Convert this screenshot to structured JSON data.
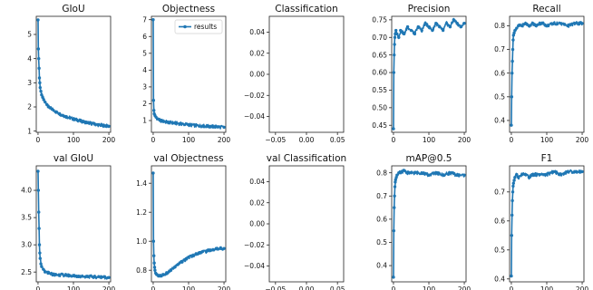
{
  "accent_color": "#1f77b4",
  "legend": {
    "label": "results",
    "panel": "objectness"
  },
  "chart_data": [
    {
      "id": "giou",
      "title": "GIoU",
      "type": "line",
      "empty": false,
      "xlim": [
        -5,
        205
      ],
      "ylim": [
        0.95,
        5.75
      ],
      "xticks": [
        0,
        100,
        200
      ],
      "yticks": [
        1,
        2,
        3,
        4,
        5
      ],
      "x": [
        0,
        1,
        2,
        3,
        4,
        5,
        6,
        8,
        10,
        13,
        16,
        20,
        25,
        30,
        40,
        50,
        60,
        70,
        80,
        90,
        100,
        110,
        120,
        130,
        140,
        150,
        160,
        170,
        180,
        190,
        200
      ],
      "values": [
        5.6,
        4.4,
        4.0,
        3.6,
        3.2,
        3.0,
        2.8,
        2.65,
        2.5,
        2.4,
        2.3,
        2.2,
        2.1,
        2.0,
        1.9,
        1.8,
        1.72,
        1.65,
        1.6,
        1.55,
        1.5,
        1.46,
        1.42,
        1.38,
        1.35,
        1.32,
        1.29,
        1.26,
        1.24,
        1.22,
        1.2
      ]
    },
    {
      "id": "objectness",
      "title": "Objectness",
      "type": "line",
      "empty": false,
      "xlim": [
        -5,
        205
      ],
      "ylim": [
        0.3,
        7.2
      ],
      "xticks": [
        0,
        100,
        200
      ],
      "yticks": [
        1,
        2,
        3,
        4,
        5,
        6,
        7
      ],
      "x": [
        0,
        1,
        2,
        3,
        5,
        8,
        12,
        20,
        30,
        40,
        60,
        80,
        100,
        120,
        140,
        160,
        180,
        200
      ],
      "values": [
        7.0,
        2.2,
        1.6,
        1.4,
        1.3,
        1.2,
        1.1,
        1.0,
        0.95,
        0.9,
        0.85,
        0.8,
        0.75,
        0.7,
        0.68,
        0.65,
        0.63,
        0.6
      ]
    },
    {
      "id": "classification",
      "title": "Classification",
      "type": "line",
      "empty": true,
      "xlim": [
        -0.06,
        0.06
      ],
      "ylim": [
        -0.055,
        0.055
      ],
      "xticks": [
        -0.05,
        0.0,
        0.05
      ],
      "xticklabels": [
        "−0.05",
        "0.00",
        "0.05"
      ],
      "yticks": [
        -0.04,
        -0.02,
        0.0,
        0.02,
        0.04
      ],
      "yticklabels": [
        "−0.04",
        "−0.02",
        "0.00",
        "0.02",
        "0.04"
      ],
      "x": [],
      "values": []
    },
    {
      "id": "precision",
      "title": "Precision",
      "type": "line",
      "empty": false,
      "xlim": [
        -5,
        205
      ],
      "ylim": [
        0.43,
        0.76
      ],
      "xticks": [
        0,
        100,
        200
      ],
      "yticks": [
        0.45,
        0.5,
        0.55,
        0.6,
        0.65,
        0.7,
        0.75
      ],
      "x": [
        0,
        1,
        2,
        3,
        4,
        5,
        7,
        10,
        15,
        20,
        30,
        40,
        50,
        60,
        70,
        80,
        90,
        100,
        110,
        120,
        130,
        140,
        150,
        160,
        170,
        180,
        190,
        200
      ],
      "values": [
        0.44,
        0.6,
        0.65,
        0.68,
        0.7,
        0.71,
        0.72,
        0.71,
        0.7,
        0.72,
        0.71,
        0.73,
        0.72,
        0.71,
        0.73,
        0.72,
        0.74,
        0.73,
        0.72,
        0.74,
        0.73,
        0.72,
        0.74,
        0.73,
        0.75,
        0.74,
        0.73,
        0.74
      ]
    },
    {
      "id": "recall",
      "title": "Recall",
      "type": "line",
      "empty": false,
      "xlim": [
        -5,
        205
      ],
      "ylim": [
        0.35,
        0.84
      ],
      "xticks": [
        0,
        100,
        200
      ],
      "yticks": [
        0.4,
        0.5,
        0.6,
        0.7,
        0.8
      ],
      "x": [
        0,
        1,
        2,
        3,
        4,
        5,
        6,
        8,
        10,
        15,
        20,
        30,
        40,
        50,
        60,
        70,
        80,
        90,
        100,
        120,
        140,
        160,
        180,
        200
      ],
      "values": [
        0.38,
        0.5,
        0.6,
        0.65,
        0.7,
        0.74,
        0.76,
        0.77,
        0.78,
        0.79,
        0.8,
        0.8,
        0.81,
        0.8,
        0.81,
        0.8,
        0.81,
        0.81,
        0.8,
        0.81,
        0.81,
        0.8,
        0.81,
        0.81
      ]
    },
    {
      "id": "val-giou",
      "title": "val GIoU",
      "type": "line",
      "empty": false,
      "xlim": [
        -5,
        205
      ],
      "ylim": [
        2.32,
        4.45
      ],
      "xticks": [
        0,
        100,
        200
      ],
      "yticks": [
        2.5,
        3.0,
        3.5,
        4.0
      ],
      "x": [
        0,
        1,
        2,
        3,
        4,
        5,
        6,
        8,
        10,
        15,
        20,
        30,
        40,
        50,
        60,
        80,
        100,
        120,
        140,
        160,
        180,
        200
      ],
      "values": [
        4.35,
        4.0,
        3.6,
        3.3,
        3.0,
        2.85,
        2.75,
        2.65,
        2.6,
        2.55,
        2.5,
        2.48,
        2.46,
        2.45,
        2.45,
        2.44,
        2.43,
        2.42,
        2.42,
        2.41,
        2.41,
        2.4
      ]
    },
    {
      "id": "val-objectness",
      "title": "val Objectness",
      "type": "line",
      "empty": false,
      "xlim": [
        -5,
        205
      ],
      "ylim": [
        0.72,
        1.52
      ],
      "xticks": [
        0,
        100,
        200
      ],
      "yticks": [
        0.8,
        1.0,
        1.2,
        1.4
      ],
      "x": [
        0,
        1,
        2,
        3,
        4,
        5,
        7,
        10,
        15,
        20,
        30,
        40,
        50,
        60,
        70,
        80,
        90,
        100,
        110,
        120,
        130,
        140,
        150,
        160,
        170,
        180,
        190,
        200
      ],
      "values": [
        1.47,
        1.0,
        0.9,
        0.85,
        0.82,
        0.8,
        0.78,
        0.77,
        0.76,
        0.76,
        0.77,
        0.78,
        0.8,
        0.82,
        0.84,
        0.86,
        0.87,
        0.89,
        0.9,
        0.91,
        0.92,
        0.93,
        0.93,
        0.94,
        0.94,
        0.95,
        0.95,
        0.95
      ]
    },
    {
      "id": "val-classification",
      "title": "val Classification",
      "type": "line",
      "empty": true,
      "xlim": [
        -0.06,
        0.06
      ],
      "ylim": [
        -0.055,
        0.055
      ],
      "xticks": [
        -0.05,
        0.0,
        0.05
      ],
      "xticklabels": [
        "−0.05",
        "0.00",
        "0.05"
      ],
      "yticks": [
        -0.04,
        -0.02,
        0.0,
        0.02,
        0.04
      ],
      "yticklabels": [
        "−0.04",
        "−0.02",
        "0.00",
        "0.02",
        "0.04"
      ],
      "x": [],
      "values": []
    },
    {
      "id": "map",
      "title": "mAP@0.5",
      "type": "line",
      "empty": false,
      "xlim": [
        -5,
        205
      ],
      "ylim": [
        0.33,
        0.83
      ],
      "xticks": [
        0,
        100,
        200
      ],
      "yticks": [
        0.4,
        0.5,
        0.6,
        0.7,
        0.8
      ],
      "x": [
        0,
        1,
        2,
        3,
        4,
        5,
        6,
        8,
        10,
        15,
        20,
        30,
        40,
        50,
        60,
        80,
        100,
        120,
        140,
        160,
        180,
        200
      ],
      "values": [
        0.35,
        0.55,
        0.65,
        0.7,
        0.74,
        0.76,
        0.77,
        0.78,
        0.79,
        0.8,
        0.8,
        0.81,
        0.8,
        0.8,
        0.8,
        0.8,
        0.79,
        0.8,
        0.79,
        0.8,
        0.79,
        0.79
      ]
    },
    {
      "id": "f1",
      "title": "F1",
      "type": "line",
      "empty": false,
      "xlim": [
        -5,
        205
      ],
      "ylim": [
        0.39,
        0.79
      ],
      "xticks": [
        0,
        100,
        200
      ],
      "yticks": [
        0.4,
        0.5,
        0.6,
        0.7
      ],
      "x": [
        0,
        1,
        2,
        3,
        4,
        5,
        6,
        8,
        10,
        15,
        20,
        30,
        40,
        50,
        60,
        80,
        100,
        120,
        140,
        160,
        180,
        200
      ],
      "values": [
        0.41,
        0.55,
        0.62,
        0.67,
        0.7,
        0.72,
        0.73,
        0.74,
        0.75,
        0.76,
        0.75,
        0.76,
        0.76,
        0.75,
        0.76,
        0.76,
        0.76,
        0.77,
        0.76,
        0.77,
        0.77,
        0.77
      ]
    }
  ]
}
